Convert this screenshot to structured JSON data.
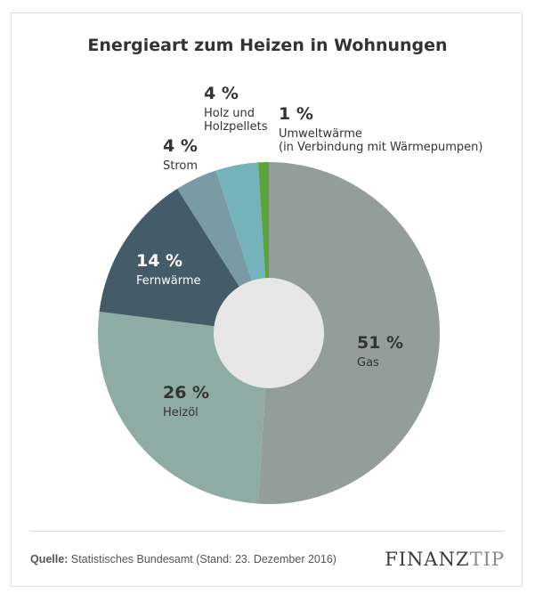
{
  "title": "Energieart zum Heizen in Wohnungen",
  "source": {
    "label": "Quelle:",
    "text": "Statistisches Bundesamt (Stand: 23. Dezember 2016)"
  },
  "brand": {
    "part1": "FINANZ",
    "part2": "TIP"
  },
  "chart_data": {
    "type": "pie",
    "title": "Energieart zum Heizen in Wohnungen",
    "slices": [
      {
        "pct_label": "51 %",
        "name": "Gas",
        "name2": "",
        "value": 51,
        "color": "#939e9b"
      },
      {
        "pct_label": "26 %",
        "name": "Heizöl",
        "name2": "",
        "value": 26,
        "color": "#8eaca3"
      },
      {
        "pct_label": "14 %",
        "name": "Fernwärme",
        "name2": "",
        "value": 14,
        "color": "#445c67"
      },
      {
        "pct_label": "4 %",
        "name": "Strom",
        "name2": "",
        "value": 4,
        "color": "#7a9aa6"
      },
      {
        "pct_label": "4 %",
        "name": "Holz und",
        "name2": "Holzpellets",
        "value": 4,
        "color": "#74b3bb"
      },
      {
        "pct_label": "1 %",
        "name": "Umweltwärme",
        "name2": "(in Verbindung mit Wärmepumpen)",
        "value": 1,
        "color": "#5aa43a"
      }
    ]
  }
}
